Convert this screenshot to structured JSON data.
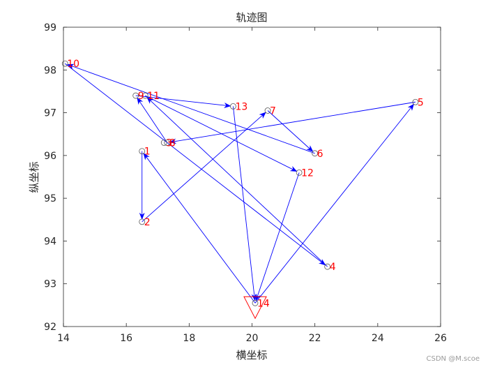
{
  "colors": {
    "path": "#0000ff",
    "label": "#ff0000",
    "marker": "#555555",
    "end_marker": "#ff0000"
  },
  "chart_data": {
    "type": "scatter",
    "title": "轨迹图",
    "xlabel": "横坐标",
    "ylabel": "纵坐标",
    "xlim": [
      14,
      26
    ],
    "ylim": [
      92,
      99
    ],
    "xticks": [
      14,
      16,
      18,
      20,
      22,
      24,
      26
    ],
    "yticks": [
      92,
      93,
      94,
      95,
      96,
      97,
      98,
      99
    ],
    "grid": false,
    "points": [
      {
        "label": "1",
        "x": 16.5,
        "y": 96.1
      },
      {
        "label": "2",
        "x": 16.5,
        "y": 94.45
      },
      {
        "label": "3",
        "x": 17.2,
        "y": 96.3
      },
      {
        "label": "4",
        "x": 22.4,
        "y": 93.4
      },
      {
        "label": "5",
        "x": 25.2,
        "y": 97.25
      },
      {
        "label": "6",
        "x": 22.0,
        "y": 96.05
      },
      {
        "label": "7",
        "x": 20.5,
        "y": 97.05
      },
      {
        "label": "8",
        "x": 17.3,
        "y": 96.3
      },
      {
        "label": "9",
        "x": 16.3,
        "y": 97.4
      },
      {
        "label": "10",
        "x": 14.05,
        "y": 98.15
      },
      {
        "label": "11",
        "x": 16.6,
        "y": 97.4
      },
      {
        "label": "12",
        "x": 21.5,
        "y": 95.6
      },
      {
        "label": "13",
        "x": 19.4,
        "y": 97.15
      },
      {
        "label": "14",
        "x": 20.1,
        "y": 92.55
      }
    ],
    "path_order": [
      "14",
      "1",
      "2",
      "7",
      "6",
      "10",
      "4",
      "11",
      "12",
      "14",
      "5",
      "8",
      "9",
      "13",
      "14"
    ],
    "end_marker": {
      "x": 20.1,
      "y": 92.55,
      "shape": "triangle-down"
    }
  },
  "watermark": "CSDN @M.scoe"
}
